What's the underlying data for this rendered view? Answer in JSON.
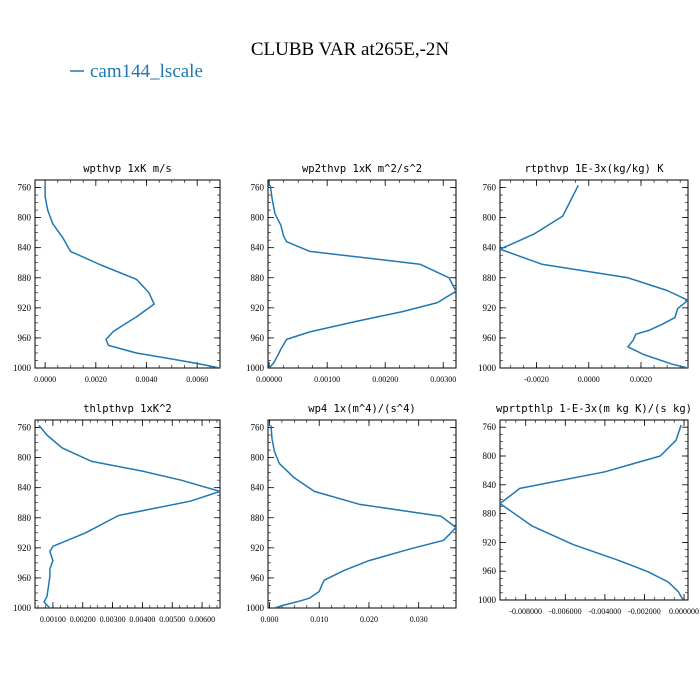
{
  "title": "CLUBB VAR at265E,-2N",
  "legend": {
    "label": "cam144_lscale",
    "color": "#1f77b4",
    "placement": "top-left"
  },
  "chart_data": [
    {
      "type": "line",
      "title": "wpthvp  1xK m/s",
      "xlim": [
        -0.0004,
        0.0069
      ],
      "ylim": [
        1000,
        750
      ],
      "yinverted": true,
      "yticks": [
        760,
        800,
        840,
        880,
        920,
        960,
        1000
      ],
      "xticks": [
        0,
        0.002,
        0.004,
        0.006
      ],
      "xtick_labels": [
        "0.0000",
        "0.0020",
        "0.0040",
        "0.0060"
      ],
      "series": [
        {
          "color": "#1f77b4",
          "x": [
            0.0,
            0.0,
            0.0001,
            0.0003,
            0.0007,
            0.001,
            0.0022,
            0.0036,
            0.0041,
            0.0043,
            0.0036,
            0.0027,
            0.0024,
            0.0025,
            0.0036,
            0.005,
            0.006,
            0.0069
          ],
          "y": [
            757,
            772,
            790,
            808,
            827,
            845,
            863,
            882,
            900,
            915,
            932,
            951,
            962,
            970,
            980,
            988,
            994,
            1000
          ]
        }
      ]
    },
    {
      "type": "line",
      "title": "wp2thvp  1xK m^2/s^2",
      "xlim": [
        -2e-05,
        0.00322
      ],
      "ylim": [
        1000,
        750
      ],
      "yinverted": true,
      "yticks": [
        760,
        800,
        840,
        880,
        920,
        960,
        1000
      ],
      "xticks": [
        0,
        0.001,
        0.002,
        0.003
      ],
      "xtick_labels": [
        "0.00000",
        "0.00100",
        "0.00200",
        "0.00300"
      ],
      "series": [
        {
          "color": "#1f77b4",
          "x": [
            2e-05,
            5e-05,
            0.0001,
            0.0002,
            0.00025,
            0.0003,
            0.0007,
            0.0026,
            0.0031,
            0.00322,
            0.0029,
            0.0023,
            0.0015,
            0.0007,
            0.0003,
            0.0002,
            0.00017,
            8e-05,
            0.0
          ],
          "y": [
            757,
            775,
            795,
            810,
            825,
            832,
            845,
            862,
            880,
            898,
            913,
            925,
            938,
            952,
            962,
            975,
            980,
            993,
            1000
          ]
        }
      ]
    },
    {
      "type": "line",
      "title": "rtpthvp  1E-3x(kg/kg) K",
      "xlim": [
        -0.0034,
        0.0038
      ],
      "ylim": [
        1000,
        750
      ],
      "yinverted": true,
      "yticks": [
        760,
        800,
        840,
        880,
        920,
        960,
        1000
      ],
      "xticks": [
        -0.002,
        0,
        0.002
      ],
      "xtick_labels": [
        "-0.0020",
        "0.0000",
        "0.0020"
      ],
      "series": [
        {
          "color": "#1f77b4",
          "x": [
            -0.0004,
            -0.001,
            -0.0021,
            -0.0034,
            -0.0018,
            0.0015,
            0.003,
            0.0038,
            0.0034,
            0.0033,
            0.0028,
            0.0023,
            0.0018,
            0.0017,
            0.0015,
            0.0021,
            0.0032,
            0.0038
          ],
          "y": [
            757,
            798,
            822,
            842,
            862,
            880,
            897,
            910,
            921,
            933,
            942,
            950,
            955,
            963,
            972,
            982,
            995,
            1000
          ]
        }
      ]
    },
    {
      "type": "line",
      "title": "thlpthvp  1xK^2",
      "xlim": [
        0.0004,
        0.0066
      ],
      "ylim": [
        1000,
        750
      ],
      "yinverted": true,
      "yticks": [
        760,
        800,
        840,
        880,
        920,
        960,
        1000
      ],
      "xticks": [
        0.001,
        0.002,
        0.003,
        0.004,
        0.005,
        0.006
      ],
      "xtick_labels": [
        "0.00100",
        "0.00200",
        "0.00300",
        "0.00400",
        "0.00500",
        "0.00600"
      ],
      "series": [
        {
          "color": "#1f77b4",
          "x": [
            0.00053,
            0.0008,
            0.0013,
            0.0023,
            0.004,
            0.0053,
            0.0066,
            0.0056,
            0.0032,
            0.0021,
            0.001,
            0.0009,
            0.001,
            0.0009,
            0.0009,
            0.00085,
            0.0008,
            0.0007,
            0.00085,
            0.0009
          ],
          "y": [
            757,
            770,
            787,
            805,
            818,
            830,
            845,
            858,
            877,
            900,
            918,
            925,
            937,
            948,
            958,
            972,
            985,
            992,
            998,
            1000
          ]
        }
      ]
    },
    {
      "type": "line",
      "title": "wp4  1x(m^4)/(s^4)",
      "xlim": [
        -0.0003,
        0.0375
      ],
      "ylim": [
        1000,
        750
      ],
      "yinverted": true,
      "yticks": [
        760,
        800,
        840,
        880,
        920,
        960,
        1000
      ],
      "xticks": [
        0,
        0.01,
        0.02,
        0.03
      ],
      "xtick_labels": [
        "0.000",
        "0.010",
        "0.020",
        "0.030"
      ],
      "series": [
        {
          "color": "#1f77b4",
          "x": [
            0.0003,
            0.0005,
            0.001,
            0.002,
            0.005,
            0.009,
            0.018,
            0.0345,
            0.0375,
            0.035,
            0.028,
            0.02,
            0.015,
            0.011,
            0.0105,
            0.01,
            0.008,
            0.006,
            0.003,
            0.001
          ],
          "y": [
            757,
            775,
            792,
            808,
            827,
            845,
            862,
            878,
            893,
            910,
            922,
            937,
            950,
            963,
            970,
            978,
            987,
            991,
            996,
            1000
          ]
        }
      ]
    },
    {
      "type": "line",
      "title": "wprtpthlp  1-E-3x(m kg K)/(s kg)",
      "xlim": [
        -0.0093,
        0.0002
      ],
      "ylim": [
        1000,
        750
      ],
      "yinverted": true,
      "yticks": [
        760,
        800,
        840,
        880,
        920,
        960,
        1000
      ],
      "xticks": [
        -0.008,
        -0.006,
        -0.004,
        -0.002,
        0
      ],
      "xtick_labels": [
        "-0.008000",
        "-0.006000",
        "-0.004000",
        "-0.002000",
        "0.000000"
      ],
      "series": [
        {
          "color": "#1f77b4",
          "x": [
            -0.00015,
            -0.0004,
            -0.0012,
            -0.004,
            -0.0083,
            -0.0093,
            -0.0077,
            -0.0056,
            -0.0033,
            -0.0018,
            -0.0008,
            -0.0003,
            -5e-05
          ],
          "y": [
            757,
            778,
            800,
            822,
            845,
            866,
            897,
            923,
            945,
            961,
            975,
            988,
            1000
          ]
        }
      ]
    }
  ]
}
